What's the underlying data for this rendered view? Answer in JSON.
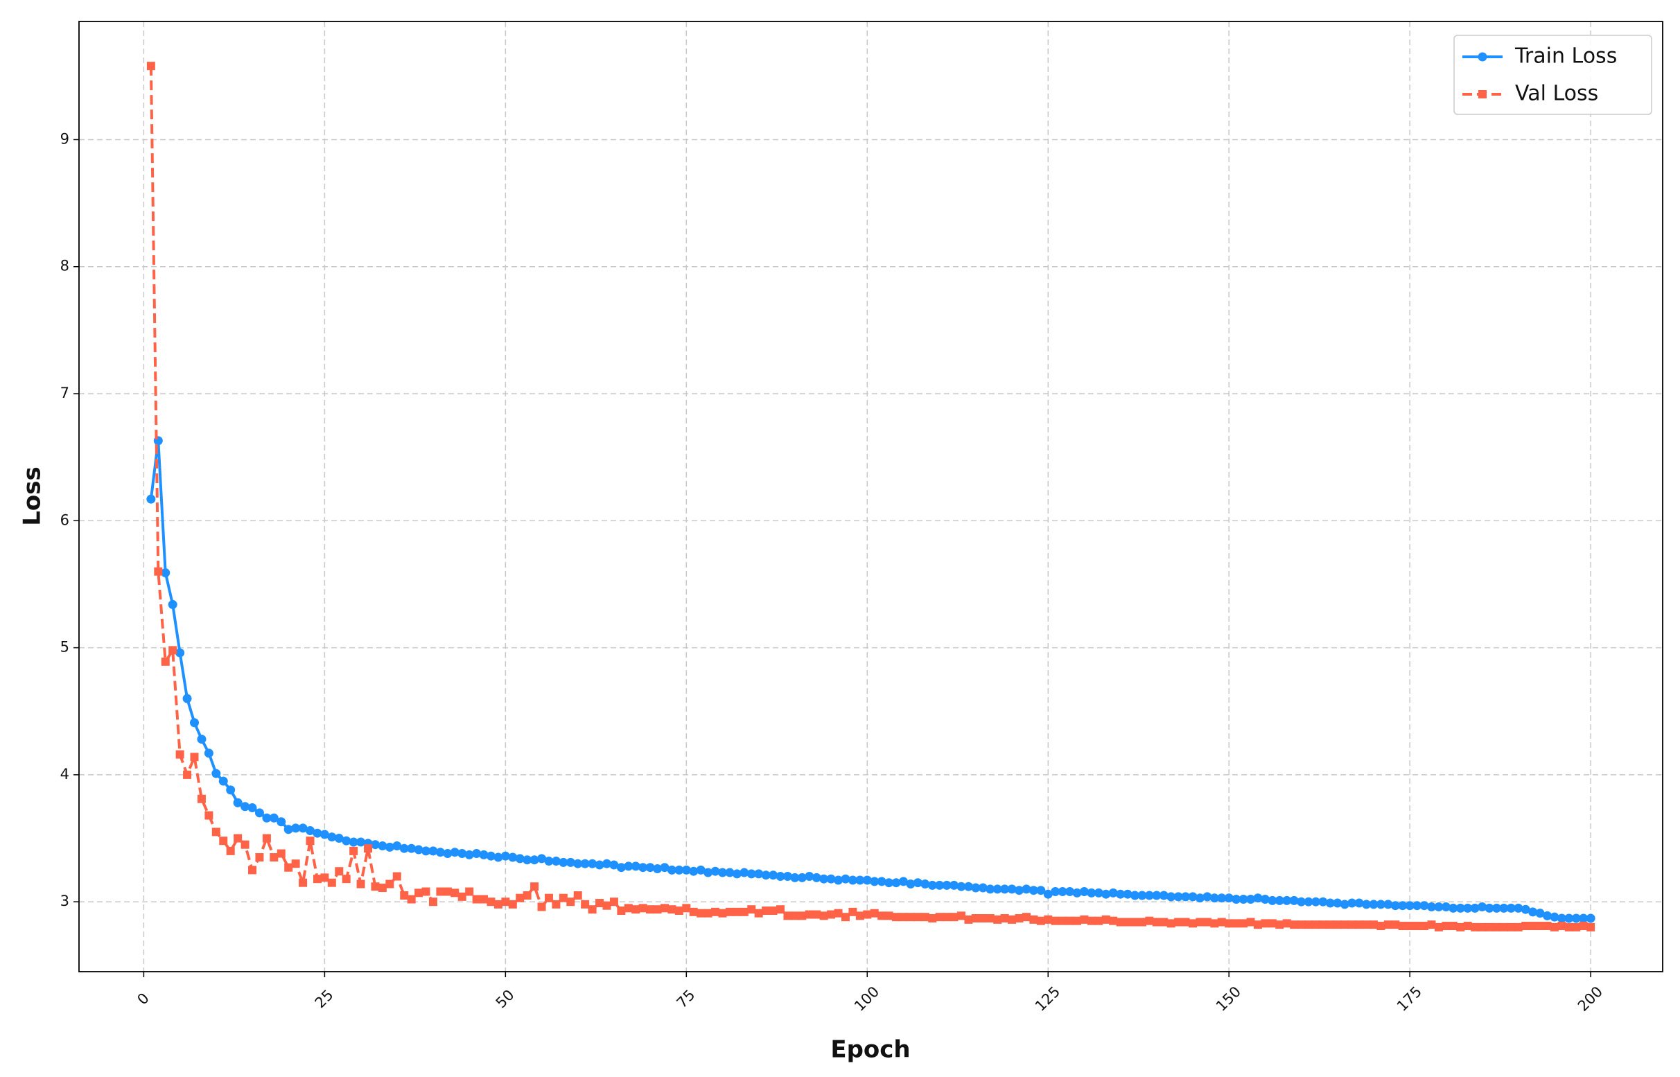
{
  "chart_data": {
    "type": "line",
    "xlabel": "Epoch",
    "ylabel": "Loss",
    "x": [
      1,
      2,
      3,
      4,
      5,
      6,
      7,
      8,
      9,
      10,
      11,
      12,
      13,
      14,
      15,
      16,
      17,
      18,
      19,
      20,
      21,
      22,
      23,
      24,
      25,
      26,
      27,
      28,
      29,
      30,
      31,
      32,
      33,
      34,
      35,
      36,
      37,
      38,
      39,
      40,
      41,
      42,
      43,
      44,
      45,
      46,
      47,
      48,
      49,
      50,
      51,
      52,
      53,
      54,
      55,
      56,
      57,
      58,
      59,
      60,
      61,
      62,
      63,
      64,
      65,
      66,
      67,
      68,
      69,
      70,
      71,
      72,
      73,
      74,
      75,
      76,
      77,
      78,
      79,
      80,
      81,
      82,
      83,
      84,
      85,
      86,
      87,
      88,
      89,
      90,
      91,
      92,
      93,
      94,
      95,
      96,
      97,
      98,
      99,
      100,
      101,
      102,
      103,
      104,
      105,
      106,
      107,
      108,
      109,
      110,
      111,
      112,
      113,
      114,
      115,
      116,
      117,
      118,
      119,
      120,
      121,
      122,
      123,
      124,
      125,
      126,
      127,
      128,
      129,
      130,
      131,
      132,
      133,
      134,
      135,
      136,
      137,
      138,
      139,
      140,
      141,
      142,
      143,
      144,
      145,
      146,
      147,
      148,
      149,
      150,
      151,
      152,
      153,
      154,
      155,
      156,
      157,
      158,
      159,
      160,
      161,
      162,
      163,
      164,
      165,
      166,
      167,
      168,
      169,
      170,
      171,
      172,
      173,
      174,
      175,
      176,
      177,
      178,
      179,
      180,
      181,
      182,
      183,
      184,
      185,
      186,
      187,
      188,
      189,
      190,
      191,
      192,
      193,
      194,
      195,
      196,
      197,
      198,
      199,
      200
    ],
    "series": [
      {
        "name": "Train Loss",
        "color": "#1e90ff",
        "linestyle": "solid",
        "marker": "circle",
        "values": [
          6.17,
          6.63,
          5.59,
          5.34,
          4.96,
          4.6,
          4.41,
          4.28,
          4.17,
          4.01,
          3.95,
          3.88,
          3.78,
          3.75,
          3.74,
          3.7,
          3.66,
          3.66,
          3.63,
          3.57,
          3.58,
          3.58,
          3.56,
          3.54,
          3.53,
          3.51,
          3.5,
          3.48,
          3.47,
          3.47,
          3.46,
          3.45,
          3.44,
          3.43,
          3.44,
          3.42,
          3.42,
          3.41,
          3.4,
          3.4,
          3.39,
          3.38,
          3.39,
          3.38,
          3.37,
          3.38,
          3.37,
          3.36,
          3.35,
          3.36,
          3.35,
          3.34,
          3.33,
          3.33,
          3.34,
          3.32,
          3.32,
          3.31,
          3.31,
          3.3,
          3.3,
          3.3,
          3.29,
          3.3,
          3.29,
          3.27,
          3.28,
          3.28,
          3.27,
          3.27,
          3.26,
          3.27,
          3.25,
          3.25,
          3.25,
          3.24,
          3.25,
          3.23,
          3.24,
          3.23,
          3.23,
          3.22,
          3.23,
          3.22,
          3.22,
          3.21,
          3.21,
          3.2,
          3.2,
          3.19,
          3.19,
          3.2,
          3.19,
          3.18,
          3.18,
          3.17,
          3.18,
          3.17,
          3.17,
          3.17,
          3.16,
          3.16,
          3.15,
          3.15,
          3.16,
          3.14,
          3.15,
          3.14,
          3.13,
          3.13,
          3.13,
          3.13,
          3.12,
          3.12,
          3.11,
          3.11,
          3.1,
          3.1,
          3.1,
          3.1,
          3.09,
          3.1,
          3.09,
          3.09,
          3.06,
          3.08,
          3.08,
          3.08,
          3.07,
          3.08,
          3.07,
          3.07,
          3.06,
          3.07,
          3.06,
          3.06,
          3.05,
          3.05,
          3.05,
          3.05,
          3.05,
          3.04,
          3.04,
          3.04,
          3.04,
          3.03,
          3.04,
          3.03,
          3.03,
          3.03,
          3.02,
          3.02,
          3.02,
          3.03,
          3.02,
          3.01,
          3.01,
          3.01,
          3.01,
          3.0,
          3.0,
          3.0,
          3.0,
          2.99,
          2.99,
          2.98,
          2.99,
          2.99,
          2.98,
          2.98,
          2.98,
          2.98,
          2.97,
          2.97,
          2.97,
          2.97,
          2.97,
          2.96,
          2.96,
          2.96,
          2.95,
          2.95,
          2.95,
          2.95,
          2.96,
          2.95,
          2.95,
          2.95,
          2.95,
          2.95,
          2.94,
          2.92,
          2.91,
          2.89,
          2.88,
          2.87,
          2.87,
          2.87,
          2.87,
          2.87
        ]
      },
      {
        "name": "Val Loss",
        "color": "#ff6347",
        "linestyle": "dashed",
        "marker": "square",
        "values": [
          9.58,
          5.6,
          4.89,
          4.98,
          4.16,
          4.0,
          4.14,
          3.81,
          3.68,
          3.55,
          3.48,
          3.4,
          3.5,
          3.45,
          3.25,
          3.35,
          3.5,
          3.35,
          3.38,
          3.27,
          3.3,
          3.15,
          3.48,
          3.18,
          3.19,
          3.15,
          3.24,
          3.18,
          3.4,
          3.14,
          3.42,
          3.12,
          3.11,
          3.14,
          3.2,
          3.05,
          3.02,
          3.07,
          3.08,
          3.0,
          3.08,
          3.08,
          3.07,
          3.04,
          3.08,
          3.02,
          3.02,
          3.0,
          2.98,
          3.0,
          2.98,
          3.03,
          3.05,
          3.12,
          2.96,
          3.03,
          2.98,
          3.03,
          3.0,
          3.05,
          2.98,
          2.94,
          2.99,
          2.97,
          3.0,
          2.93,
          2.95,
          2.94,
          2.95,
          2.94,
          2.94,
          2.95,
          2.94,
          2.93,
          2.95,
          2.92,
          2.91,
          2.91,
          2.92,
          2.91,
          2.92,
          2.92,
          2.92,
          2.94,
          2.91,
          2.93,
          2.93,
          2.94,
          2.89,
          2.89,
          2.89,
          2.9,
          2.9,
          2.89,
          2.9,
          2.91,
          2.88,
          2.92,
          2.89,
          2.9,
          2.91,
          2.89,
          2.89,
          2.88,
          2.88,
          2.88,
          2.88,
          2.88,
          2.87,
          2.88,
          2.88,
          2.88,
          2.89,
          2.86,
          2.87,
          2.87,
          2.87,
          2.86,
          2.87,
          2.86,
          2.87,
          2.88,
          2.86,
          2.85,
          2.86,
          2.85,
          2.85,
          2.85,
          2.85,
          2.86,
          2.85,
          2.85,
          2.86,
          2.85,
          2.84,
          2.84,
          2.84,
          2.84,
          2.85,
          2.84,
          2.84,
          2.83,
          2.84,
          2.84,
          2.83,
          2.84,
          2.84,
          2.83,
          2.84,
          2.83,
          2.83,
          2.83,
          2.84,
          2.82,
          2.83,
          2.83,
          2.82,
          2.83,
          2.82,
          2.82,
          2.82,
          2.82,
          2.82,
          2.82,
          2.82,
          2.82,
          2.82,
          2.82,
          2.82,
          2.82,
          2.81,
          2.82,
          2.82,
          2.81,
          2.81,
          2.81,
          2.81,
          2.82,
          2.8,
          2.81,
          2.81,
          2.8,
          2.81,
          2.8,
          2.8,
          2.8,
          2.8,
          2.8,
          2.8,
          2.8,
          2.81,
          2.81,
          2.81,
          2.81,
          2.8,
          2.81,
          2.8,
          2.8,
          2.81,
          2.8
        ]
      }
    ],
    "xlim": [
      -8.95,
      209.95
    ],
    "xticks": [
      0,
      25,
      50,
      75,
      100,
      125,
      150,
      175,
      200
    ],
    "ylim": [
      2.45,
      9.93
    ],
    "yticks": [
      3,
      4,
      5,
      6,
      7,
      8,
      9
    ],
    "grid": true,
    "legend": "upper right"
  }
}
